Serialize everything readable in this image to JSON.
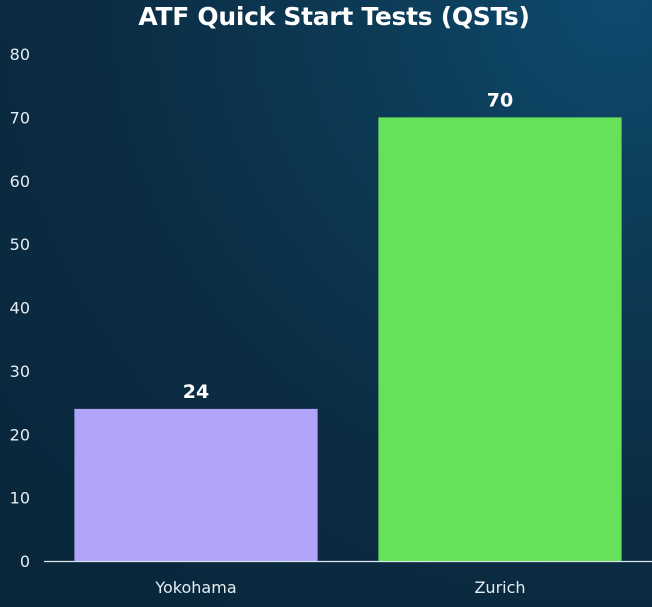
{
  "chart_data": {
    "type": "bar",
    "title": "ATF Quick Start Tests (QSTs)",
    "categories": [
      "Yokohama",
      "Zurich"
    ],
    "values": [
      24,
      70
    ],
    "data_labels": [
      "24",
      "70"
    ],
    "colors": [
      "#b1a4fb",
      "#67e05a"
    ],
    "ylim": [
      0,
      80
    ],
    "yticks": [
      0,
      10,
      20,
      30,
      40,
      50,
      60,
      70,
      80
    ],
    "xlabel": "",
    "ylabel": "",
    "grid": false,
    "legend": "none"
  }
}
